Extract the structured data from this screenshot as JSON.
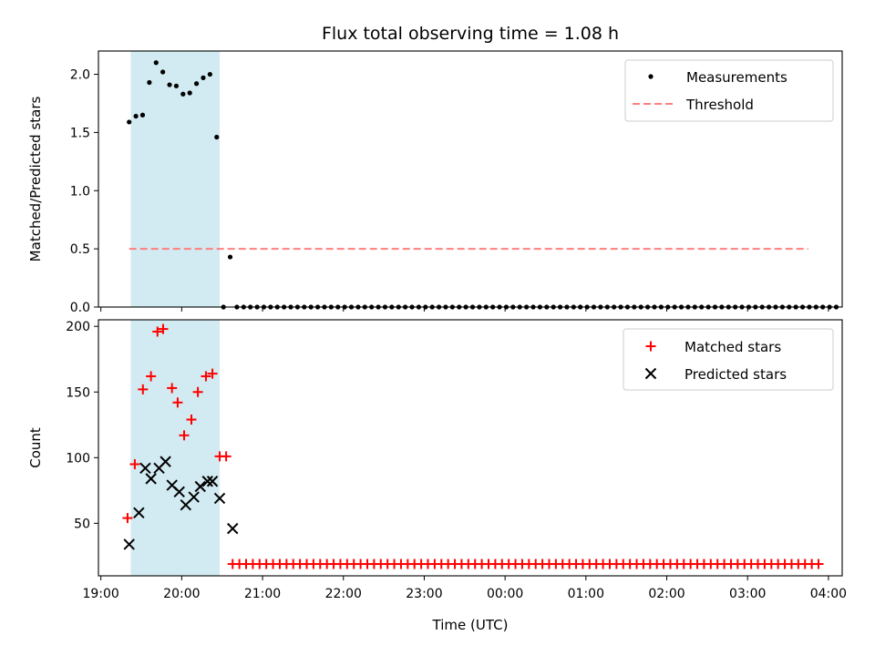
{
  "title": "Flux total observing time = 1.08 h",
  "colors": {
    "shade": "#add8e6",
    "measurement": "#000000",
    "threshold": "#ff7f7f",
    "matched": "#ff0000",
    "predicted": "#000000"
  },
  "chart_data": [
    {
      "type": "scatter",
      "panel": "top",
      "ylabel": "Matched/Predicted stars",
      "ylim": [
        0,
        2.2
      ],
      "yticks": [
        0.0,
        0.5,
        1.0,
        1.5,
        2.0
      ],
      "ytick_labels": [
        "0.0",
        "0.5",
        "1.0",
        "1.5",
        "2.0"
      ],
      "xlim_hours": [
        18.97,
        28.17
      ],
      "xticks_hours": [
        19,
        20,
        21,
        22,
        23,
        24,
        25,
        26,
        27,
        28
      ],
      "shaded_span_hours": [
        19.37,
        20.47
      ],
      "legend_position": "top-right",
      "series": [
        {
          "name": "Measurements",
          "marker": "dot",
          "x_start_hours": 19.35,
          "x_step_hours": 0.0833,
          "values": [
            1.59,
            1.64,
            1.65,
            1.93,
            2.1,
            2.02,
            1.91,
            1.9,
            1.83,
            1.84,
            1.92,
            1.97,
            2.0,
            1.46,
            0.0,
            0.43,
            0,
            0,
            0,
            0,
            0,
            0,
            0,
            0,
            0,
            0,
            0,
            0,
            0,
            0,
            0,
            0,
            0,
            0,
            0,
            0,
            0,
            0,
            0,
            0,
            0,
            0,
            0,
            0,
            0,
            0,
            0,
            0,
            0,
            0,
            0,
            0,
            0,
            0,
            0,
            0,
            0,
            0,
            0,
            0,
            0,
            0,
            0,
            0,
            0,
            0,
            0,
            0,
            0,
            0,
            0,
            0,
            0,
            0,
            0,
            0,
            0,
            0,
            0,
            0,
            0,
            0,
            0,
            0,
            0,
            0,
            0,
            0,
            0,
            0,
            0,
            0,
            0,
            0,
            0,
            0,
            0,
            0,
            0,
            0,
            0,
            0,
            0,
            0,
            0,
            0
          ]
        },
        {
          "name": "Threshold",
          "style": "dashed-line",
          "x_hours": [
            19.35,
            27.75
          ],
          "values": [
            0.5,
            0.5
          ]
        }
      ]
    },
    {
      "type": "scatter",
      "panel": "bottom",
      "ylabel": "Count",
      "xlabel": "Time (UTC)",
      "ylim": [
        10,
        205
      ],
      "yticks": [
        50,
        100,
        150,
        200
      ],
      "ytick_labels": [
        "50",
        "100",
        "150",
        "200"
      ],
      "xlim_hours": [
        18.97,
        28.17
      ],
      "xticks_hours": [
        19,
        20,
        21,
        22,
        23,
        24,
        25,
        26,
        27,
        28
      ],
      "xtick_labels": [
        "19:00",
        "20:00",
        "21:00",
        "22:00",
        "23:00",
        "00:00",
        "01:00",
        "02:00",
        "03:00",
        "04:00"
      ],
      "shaded_span_hours": [
        19.37,
        20.47
      ],
      "legend_position": "top-right",
      "series": [
        {
          "name": "Matched stars",
          "marker": "plus",
          "points": [
            [
              19.33,
              54
            ],
            [
              19.42,
              95
            ],
            [
              19.52,
              152
            ],
            [
              19.62,
              162
            ],
            [
              19.7,
              196
            ],
            [
              19.77,
              198
            ],
            [
              19.88,
              153
            ],
            [
              19.95,
              142
            ],
            [
              20.03,
              117
            ],
            [
              20.12,
              129
            ],
            [
              20.2,
              150
            ],
            [
              20.3,
              162
            ],
            [
              20.38,
              164
            ],
            [
              20.47,
              101
            ],
            [
              20.55,
              101
            ]
          ],
          "tail_x_start_hours": 20.63,
          "tail_x_step_hours": 0.0833,
          "tail_count": 88,
          "tail_value": 19
        },
        {
          "name": "Predicted stars",
          "marker": "x",
          "points": [
            [
              19.35,
              34
            ],
            [
              19.47,
              58
            ],
            [
              19.55,
              92
            ],
            [
              19.62,
              84
            ],
            [
              19.72,
              92
            ],
            [
              19.8,
              97
            ],
            [
              19.88,
              79
            ],
            [
              19.97,
              74
            ],
            [
              20.05,
              64
            ],
            [
              20.15,
              70
            ],
            [
              20.23,
              78
            ],
            [
              20.32,
              82
            ],
            [
              20.38,
              82
            ],
            [
              20.47,
              69
            ],
            [
              20.63,
              46
            ]
          ]
        }
      ]
    }
  ]
}
